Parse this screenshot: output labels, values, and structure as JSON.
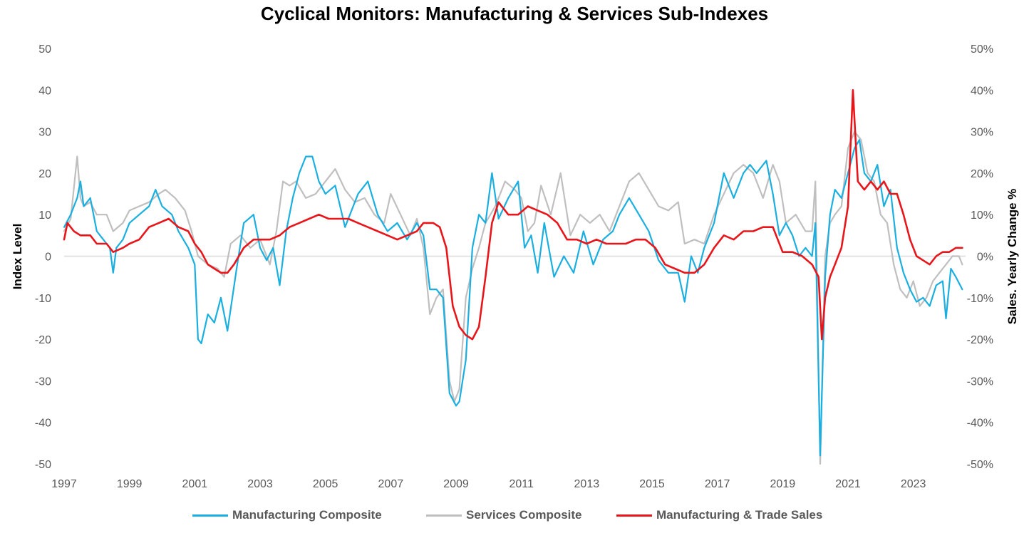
{
  "title": "Cyclical Monitors: Manufacturing & Services Sub-Indexes",
  "ylabel_left": "Index Level",
  "ylabel_right": "Sales. Yearly Change %",
  "chart_data": {
    "type": "line",
    "title": "Cyclical Monitors: Manufacturing & Services Sub-Indexes",
    "ylabel": "Index Level",
    "ylabel_right": "Sales. Yearly Change %",
    "ylim": [
      -50,
      50
    ],
    "ylim_right": [
      -50,
      50
    ],
    "xlim": [
      1997,
      2024.6
    ],
    "x_ticks": [
      "1997",
      "1999",
      "2001",
      "2003",
      "2005",
      "2007",
      "2009",
      "2011",
      "2013",
      "2015",
      "2017",
      "2019",
      "2021",
      "2023"
    ],
    "y_ticks_left": [
      "50",
      "40",
      "30",
      "20",
      "10",
      "0",
      "-10",
      "-20",
      "-30",
      "-40",
      "-50"
    ],
    "y_ticks_right": [
      "50%",
      "40%",
      "30%",
      "20%",
      "10%",
      "0%",
      "-10%",
      "-20%",
      "-30%",
      "-40%",
      "-50%"
    ],
    "grid": false,
    "legend_position": "bottom",
    "series": [
      {
        "name": "Manufacturing Composite",
        "color": "#1AAFE0",
        "axis": "left",
        "x": [
          1997.0,
          1997.2,
          1997.4,
          1997.5,
          1997.6,
          1997.8,
          1998.0,
          1998.2,
          1998.4,
          1998.5,
          1998.6,
          1998.8,
          1999.0,
          1999.3,
          1999.6,
          1999.8,
          2000.0,
          2000.3,
          2000.5,
          2000.8,
          2001.0,
          2001.1,
          2001.2,
          2001.4,
          2001.6,
          2001.8,
          2002.0,
          2002.3,
          2002.5,
          2002.8,
          2003.0,
          2003.2,
          2003.4,
          2003.6,
          2003.8,
          2004.0,
          2004.2,
          2004.4,
          2004.6,
          2004.8,
          2005.0,
          2005.3,
          2005.6,
          2006.0,
          2006.3,
          2006.6,
          2006.9,
          2007.2,
          2007.5,
          2007.8,
          2008.0,
          2008.2,
          2008.4,
          2008.6,
          2008.8,
          2009.0,
          2009.1,
          2009.3,
          2009.5,
          2009.7,
          2009.9,
          2010.1,
          2010.3,
          2010.6,
          2010.9,
          2011.1,
          2011.3,
          2011.5,
          2011.7,
          2012.0,
          2012.3,
          2012.6,
          2012.9,
          2013.2,
          2013.5,
          2013.8,
          2014.0,
          2014.3,
          2014.6,
          2014.9,
          2015.2,
          2015.5,
          2015.8,
          2016.0,
          2016.2,
          2016.4,
          2016.6,
          2016.9,
          2017.2,
          2017.5,
          2017.8,
          2018.0,
          2018.2,
          2018.5,
          2018.7,
          2018.9,
          2019.1,
          2019.3,
          2019.5,
          2019.7,
          2019.9,
          2020.0,
          2020.15,
          2020.3,
          2020.45,
          2020.6,
          2020.8,
          2021.0,
          2021.2,
          2021.35,
          2021.5,
          2021.7,
          2021.9,
          2022.1,
          2022.3,
          2022.5,
          2022.7,
          2022.9,
          2023.1,
          2023.3,
          2023.5,
          2023.7,
          2023.9,
          2024.0,
          2024.15,
          2024.3,
          2024.5
        ],
        "y": [
          7,
          10,
          14,
          18,
          12,
          14,
          6,
          4,
          2,
          -4,
          2,
          4,
          8,
          10,
          12,
          16,
          12,
          10,
          6,
          2,
          -2,
          -20,
          -21,
          -14,
          -16,
          -10,
          -18,
          -2,
          8,
          10,
          2,
          -1,
          2,
          -7,
          6,
          14,
          20,
          24,
          24,
          18,
          15,
          17,
          7,
          15,
          18,
          10,
          6,
          8,
          4,
          8,
          5,
          -8,
          -8,
          -10,
          -33,
          -36,
          -35,
          -25,
          2,
          10,
          8,
          20,
          9,
          14,
          18,
          2,
          5,
          -4,
          8,
          -5,
          0,
          -4,
          6,
          -2,
          4,
          6,
          10,
          14,
          10,
          6,
          -1,
          -4,
          -4,
          -11,
          0,
          -4,
          2,
          8,
          20,
          14,
          20,
          22,
          20,
          23,
          15,
          5,
          8,
          5,
          0,
          2,
          0,
          8,
          -48,
          -5,
          10,
          16,
          14,
          20,
          26,
          28,
          20,
          18,
          22,
          12,
          16,
          2,
          -4,
          -8,
          -11,
          -10,
          -12,
          -7,
          -6,
          -15,
          -3,
          -5,
          -8
        ]
      },
      {
        "name": "Services Composite",
        "color": "#BFBFBF",
        "axis": "left",
        "x": [
          1997.0,
          1997.2,
          1997.4,
          1997.5,
          1997.6,
          1997.8,
          1998.0,
          1998.3,
          1998.5,
          1998.8,
          1999.0,
          1999.3,
          1999.6,
          1999.9,
          2000.1,
          2000.4,
          2000.7,
          2000.9,
          2001.1,
          2001.4,
          2001.7,
          2001.9,
          2002.1,
          2002.4,
          2002.7,
          2003.0,
          2003.3,
          2003.5,
          2003.7,
          2003.9,
          2004.1,
          2004.4,
          2004.7,
          2005.0,
          2005.3,
          2005.6,
          2005.9,
          2006.2,
          2006.5,
          2006.8,
          2007.0,
          2007.3,
          2007.6,
          2007.8,
          2008.0,
          2008.2,
          2008.4,
          2008.6,
          2008.8,
          2008.95,
          2009.1,
          2009.3,
          2009.5,
          2009.7,
          2009.9,
          2010.2,
          2010.5,
          2010.8,
          2011.0,
          2011.2,
          2011.4,
          2011.6,
          2011.9,
          2012.2,
          2012.5,
          2012.8,
          2013.1,
          2013.4,
          2013.7,
          2014.0,
          2014.3,
          2014.6,
          2014.9,
          2015.2,
          2015.5,
          2015.8,
          2016.0,
          2016.3,
          2016.6,
          2016.9,
          2017.2,
          2017.5,
          2017.8,
          2018.1,
          2018.4,
          2018.7,
          2018.9,
          2019.1,
          2019.4,
          2019.7,
          2019.9,
          2020.0,
          2020.15,
          2020.3,
          2020.45,
          2020.6,
          2020.8,
          2021.0,
          2021.2,
          2021.4,
          2021.6,
          2021.8,
          2022.0,
          2022.2,
          2022.4,
          2022.6,
          2022.8,
          2023.0,
          2023.2,
          2023.4,
          2023.6,
          2023.8,
          2024.0,
          2024.2,
          2024.4,
          2024.5
        ],
        "y": [
          6,
          9,
          24,
          14,
          12,
          13,
          10,
          10,
          6,
          8,
          11,
          12,
          13,
          15,
          16,
          14,
          11,
          6,
          0,
          -2,
          -3,
          -5,
          3,
          5,
          2,
          4,
          -2,
          6,
          18,
          17,
          18,
          14,
          15,
          18,
          21,
          16,
          13,
          14,
          10,
          8,
          15,
          10,
          5,
          9,
          2,
          -14,
          -10,
          -8,
          -30,
          -35,
          -32,
          -10,
          -3,
          2,
          8,
          12,
          18,
          16,
          14,
          6,
          8,
          17,
          10,
          20,
          5,
          10,
          8,
          10,
          6,
          12,
          18,
          20,
          16,
          12,
          11,
          13,
          3,
          4,
          3,
          10,
          15,
          20,
          22,
          20,
          14,
          22,
          18,
          8,
          10,
          6,
          6,
          18,
          -50,
          0,
          8,
          10,
          12,
          26,
          30,
          28,
          20,
          18,
          10,
          8,
          -2,
          -8,
          -10,
          -6,
          -12,
          -10,
          -6,
          -4,
          -2,
          0,
          0,
          -2
        ]
      },
      {
        "name": "Manufacturing & Trade Sales",
        "color": "#E8161B",
        "axis": "right",
        "x": [
          1997.0,
          1997.1,
          1997.3,
          1997.5,
          1997.8,
          1998.0,
          1998.3,
          1998.5,
          1998.8,
          1999.0,
          1999.3,
          1999.6,
          1999.9,
          2000.2,
          2000.5,
          2000.8,
          2001.0,
          2001.2,
          2001.4,
          2001.6,
          2001.8,
          2002.0,
          2002.2,
          2002.5,
          2002.8,
          2003.0,
          2003.3,
          2003.6,
          2003.9,
          2004.2,
          2004.5,
          2004.8,
          2005.1,
          2005.4,
          2005.7,
          2006.0,
          2006.3,
          2006.6,
          2006.9,
          2007.2,
          2007.5,
          2007.8,
          2008.0,
          2008.3,
          2008.5,
          2008.7,
          2008.9,
          2009.1,
          2009.3,
          2009.5,
          2009.7,
          2009.9,
          2010.1,
          2010.3,
          2010.6,
          2010.9,
          2011.2,
          2011.5,
          2011.8,
          2012.1,
          2012.4,
          2012.7,
          2013.0,
          2013.3,
          2013.6,
          2013.9,
          2014.2,
          2014.5,
          2014.8,
          2015.1,
          2015.4,
          2015.7,
          2016.0,
          2016.3,
          2016.6,
          2016.9,
          2017.2,
          2017.5,
          2017.8,
          2018.1,
          2018.4,
          2018.7,
          2019.0,
          2019.3,
          2019.6,
          2019.9,
          2020.1,
          2020.2,
          2020.3,
          2020.45,
          2020.6,
          2020.8,
          2021.0,
          2021.15,
          2021.3,
          2021.5,
          2021.7,
          2021.9,
          2022.1,
          2022.3,
          2022.5,
          2022.7,
          2022.9,
          2023.1,
          2023.3,
          2023.5,
          2023.7,
          2023.9,
          2024.1,
          2024.3,
          2024.5
        ],
        "y": [
          4,
          8,
          6,
          5,
          5,
          3,
          3,
          1,
          2,
          3,
          4,
          7,
          8,
          9,
          7,
          6,
          3,
          1,
          -2,
          -3,
          -4,
          -4,
          -2,
          2,
          4,
          4,
          4,
          5,
          7,
          8,
          9,
          10,
          9,
          9,
          9,
          8,
          7,
          6,
          5,
          4,
          5,
          6,
          8,
          8,
          7,
          2,
          -12,
          -17,
          -19,
          -20,
          -17,
          -5,
          8,
          13,
          10,
          10,
          12,
          11,
          10,
          8,
          4,
          4,
          3,
          4,
          3,
          3,
          3,
          4,
          4,
          2,
          -2,
          -3,
          -4,
          -4,
          -2,
          2,
          5,
          4,
          6,
          6,
          7,
          7,
          1,
          1,
          0,
          -2,
          -5,
          -20,
          -10,
          -5,
          -2,
          2,
          12,
          40,
          18,
          16,
          18,
          16,
          18,
          15,
          15,
          10,
          4,
          0,
          -1,
          -2,
          0,
          1,
          1,
          2,
          2
        ]
      }
    ]
  },
  "legend": {
    "items": [
      {
        "label": "Manufacturing Composite"
      },
      {
        "label": "Services Composite"
      },
      {
        "label": "Manufacturing & Trade Sales"
      }
    ]
  }
}
